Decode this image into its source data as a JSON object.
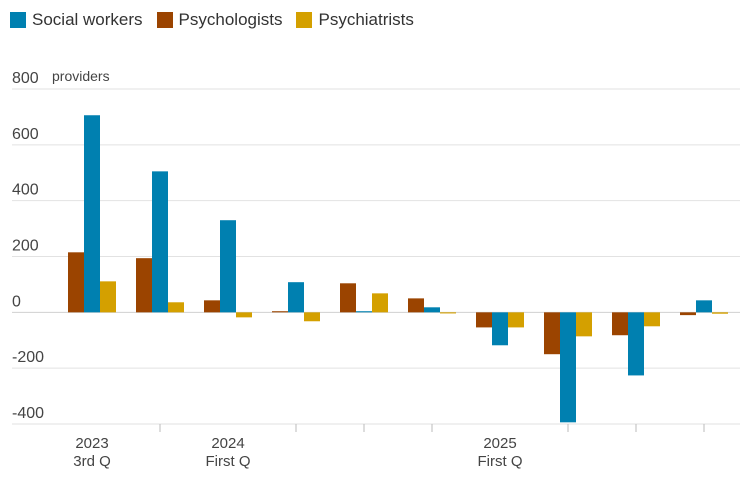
{
  "chart_data": {
    "type": "bar",
    "title": "",
    "ylabel": "providers",
    "ylim": [
      -400,
      800
    ],
    "yticks": [
      800,
      600,
      400,
      200,
      0,
      -200,
      -400
    ],
    "grid": true,
    "legend_placement": "top-left",
    "categories": [
      "2023 3rd Q",
      "",
      "2024 First Q",
      "",
      "",
      "",
      "2025 First Q",
      "",
      "",
      ""
    ],
    "xtick_labels": [
      {
        "index": 0,
        "line1": "2023",
        "line2": "3rd Q"
      },
      {
        "index": 2,
        "line1": "2024",
        "line2": "First Q"
      },
      {
        "index": 6,
        "line1": "2025",
        "line2": "First Q"
      }
    ],
    "series": [
      {
        "name": "Social workers",
        "color": "#0080b0",
        "values": [
          706,
          505,
          330,
          108,
          4,
          18,
          -118,
          -394,
          -226,
          43
        ]
      },
      {
        "name": "Psychologists",
        "color": "#9b4400",
        "values": [
          215,
          194,
          43,
          4,
          104,
          50,
          -54,
          -150,
          -82,
          -10
        ]
      },
      {
        "name": "Psychiatrists",
        "color": "#d4a000",
        "values": [
          111,
          36,
          -18,
          -32,
          68,
          -4,
          -54,
          -86,
          -50,
          -5
        ]
      }
    ]
  }
}
